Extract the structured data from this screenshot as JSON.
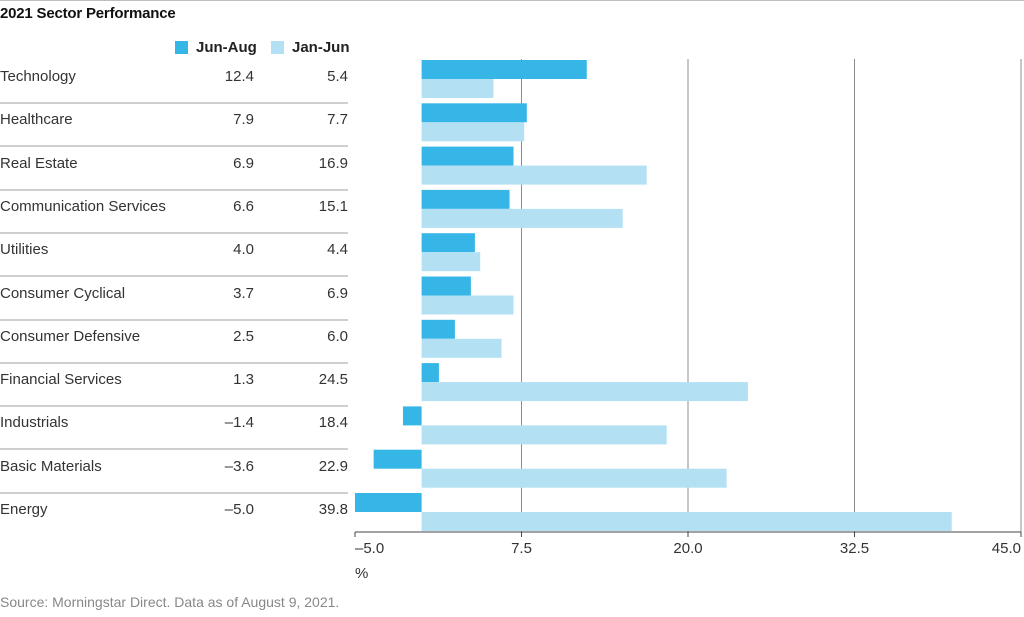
{
  "title": "2021 Sector Performance",
  "legend": [
    {
      "name": "Jun-Aug",
      "color": "#35b6e6"
    },
    {
      "name": "Jan-Jun",
      "color": "#b3e1f3"
    }
  ],
  "rows": [
    {
      "label": "Technology",
      "v1": "12.4",
      "v2": "5.4"
    },
    {
      "label": "Healthcare",
      "v1": "7.9",
      "v2": "7.7"
    },
    {
      "label": "Real Estate",
      "v1": "6.9",
      "v2": "16.9"
    },
    {
      "label": "Communication Services",
      "v1": "6.6",
      "v2": "15.1"
    },
    {
      "label": "Utilities",
      "v1": "4.0",
      "v2": "4.4"
    },
    {
      "label": "Consumer Cyclical",
      "v1": "3.7",
      "v2": "6.9"
    },
    {
      "label": "Consumer Defensive",
      "v1": "2.5",
      "v2": "6.0"
    },
    {
      "label": "Financial Services",
      "v1": "1.3",
      "v2": "24.5"
    },
    {
      "label": "Industrials",
      "v1": "–1.4",
      "v2": "18.4"
    },
    {
      "label": "Basic Materials",
      "v1": "–3.6",
      "v2": "22.9"
    },
    {
      "label": "Energy",
      "v1": "–5.0",
      "v2": "39.8"
    }
  ],
  "chart_data": {
    "type": "bar",
    "orientation": "horizontal",
    "title": "2021 Sector Performance",
    "categories": [
      "Technology",
      "Healthcare",
      "Real Estate",
      "Communication Services",
      "Utilities",
      "Consumer Cyclical",
      "Consumer Defensive",
      "Financial Services",
      "Industrials",
      "Basic Materials",
      "Energy"
    ],
    "series": [
      {
        "name": "Jun-Aug",
        "color": "#35b6e6",
        "values": [
          12.4,
          7.9,
          6.9,
          6.6,
          4.0,
          3.7,
          2.5,
          1.3,
          -1.4,
          -3.6,
          -5.0
        ]
      },
      {
        "name": "Jan-Jun",
        "color": "#b3e1f3",
        "values": [
          5.4,
          7.7,
          16.9,
          15.1,
          4.4,
          6.9,
          6.0,
          24.5,
          18.4,
          22.9,
          39.8
        ]
      }
    ],
    "xlim": [
      -5.0,
      45.0
    ],
    "ticks": [
      -5.0,
      7.5,
      20.0,
      32.5,
      45.0
    ],
    "tick_labels": [
      "–5.0",
      "7.5",
      "20.0",
      "32.5",
      "45.0"
    ],
    "xlabel": "%",
    "grid": "vertical"
  },
  "footer": {
    "unit": "%",
    "source": "Source: Morningstar Direct. Data as of August 9, 2021."
  }
}
